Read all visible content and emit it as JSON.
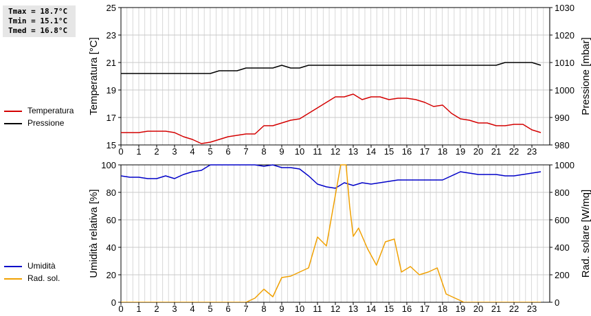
{
  "stats": {
    "tmax": "Tmax = 18.7°C",
    "tmin": "Tmin = 15.1°C",
    "tmed": "Tmed = 16.8°C"
  },
  "legend_top": [
    {
      "label": "Temperatura",
      "color": "#d40000"
    },
    {
      "label": "Pressione",
      "color": "#000000"
    }
  ],
  "legend_bottom": [
    {
      "label": "Umidità",
      "color": "#0000c8"
    },
    {
      "label": "Rad. sol.",
      "color": "#f0a000"
    }
  ],
  "chart_data": [
    {
      "type": "line",
      "ylabel": "Temperatura [°C]",
      "ylabel_right": "Pressione [mbar]",
      "xlim": [
        0,
        24
      ],
      "x_ticks": [
        0,
        1,
        2,
        3,
        4,
        5,
        6,
        7,
        8,
        9,
        10,
        11,
        12,
        13,
        14,
        15,
        16,
        17,
        18,
        19,
        20,
        21,
        22,
        23
      ],
      "ylim": [
        15,
        25
      ],
      "y_ticks": [
        15,
        17,
        19,
        21,
        23,
        25
      ],
      "ylim_right": [
        980,
        1030
      ],
      "y_ticks_right": [
        980,
        990,
        1000,
        1010,
        1020,
        1030
      ],
      "grid": true,
      "series": [
        {
          "name": "Temperatura",
          "axis": "left",
          "color": "#d40000",
          "x": [
            0,
            0.5,
            1,
            1.5,
            2,
            2.5,
            3,
            3.5,
            4,
            4.5,
            5,
            5.5,
            6,
            6.5,
            7,
            7.5,
            8,
            8.5,
            9,
            9.5,
            10,
            10.5,
            11,
            11.5,
            12,
            12.5,
            13,
            13.5,
            14,
            14.5,
            15,
            15.5,
            16,
            16.5,
            17,
            17.5,
            18,
            18.5,
            19,
            19.5,
            20,
            20.5,
            21,
            21.5,
            22,
            22.5,
            23,
            23.5
          ],
          "y": [
            15.9,
            15.9,
            15.9,
            16.0,
            16.0,
            16.0,
            15.9,
            15.6,
            15.4,
            15.1,
            15.2,
            15.4,
            15.6,
            15.7,
            15.8,
            15.8,
            16.4,
            16.4,
            16.6,
            16.8,
            16.9,
            17.3,
            17.7,
            18.1,
            18.5,
            18.5,
            18.7,
            18.3,
            18.5,
            18.5,
            18.3,
            18.4,
            18.4,
            18.3,
            18.1,
            17.8,
            17.9,
            17.3,
            16.9,
            16.8,
            16.6,
            16.6,
            16.4,
            16.4,
            16.5,
            16.5,
            16.1,
            15.9
          ]
        },
        {
          "name": "Pressione",
          "axis": "right",
          "color": "#000000",
          "x": [
            0,
            0.5,
            1,
            1.5,
            2,
            2.5,
            3,
            3.5,
            4,
            4.5,
            5,
            5.5,
            6,
            6.5,
            7,
            7.5,
            8,
            8.5,
            9,
            9.5,
            10,
            10.5,
            11,
            11.5,
            12,
            12.5,
            13,
            13.5,
            14,
            14.5,
            15,
            15.5,
            16,
            16.5,
            17,
            17.5,
            18,
            18.5,
            19,
            19.5,
            20,
            20.5,
            21,
            21.5,
            22,
            22.5,
            23,
            23.5
          ],
          "y": [
            1006,
            1006,
            1006,
            1006,
            1006,
            1006,
            1006,
            1006,
            1006,
            1006,
            1006,
            1007,
            1007,
            1007,
            1008,
            1008,
            1008,
            1008,
            1009,
            1008,
            1008,
            1009,
            1009,
            1009,
            1009,
            1009,
            1009,
            1009,
            1009,
            1009,
            1009,
            1009,
            1009,
            1009,
            1009,
            1009,
            1009,
            1009,
            1009,
            1009,
            1009,
            1009,
            1009,
            1010,
            1010,
            1010,
            1010,
            1009
          ]
        }
      ]
    },
    {
      "type": "line",
      "ylabel": "Umidità relativa [%]",
      "ylabel_right": "Rad. solare [W/mq]",
      "xlim": [
        0,
        24
      ],
      "x_ticks": [
        0,
        1,
        2,
        3,
        4,
        5,
        6,
        7,
        8,
        9,
        10,
        11,
        12,
        13,
        14,
        15,
        16,
        17,
        18,
        19,
        20,
        21,
        22,
        23
      ],
      "ylim": [
        0,
        100
      ],
      "y_ticks": [
        0,
        20,
        40,
        60,
        80,
        100
      ],
      "ylim_right": [
        0,
        1000
      ],
      "y_ticks_right": [
        0,
        200,
        400,
        600,
        800,
        1000
      ],
      "grid": true,
      "series": [
        {
          "name": "Umidità",
          "axis": "left",
          "color": "#0000c8",
          "x": [
            0,
            0.5,
            1,
            1.5,
            2,
            2.5,
            3,
            3.5,
            4,
            4.5,
            5,
            5.5,
            6,
            6.5,
            7,
            7.5,
            8,
            8.5,
            9,
            9.5,
            10,
            10.5,
            11,
            11.5,
            12,
            12.5,
            13,
            13.5,
            14,
            14.5,
            15,
            15.5,
            16,
            16.5,
            17,
            17.5,
            18,
            18.5,
            19,
            19.5,
            20,
            20.5,
            21,
            21.5,
            22,
            22.5,
            23,
            23.5
          ],
          "y": [
            92,
            91,
            91,
            90,
            90,
            92,
            90,
            93,
            95,
            96,
            100,
            100,
            100,
            100,
            100,
            100,
            99,
            100,
            98,
            98,
            97,
            92,
            86,
            84,
            83,
            87,
            85,
            87,
            86,
            87,
            88,
            89,
            89,
            89,
            89,
            89,
            89,
            92,
            95,
            94,
            93,
            93,
            93,
            92,
            92,
            93,
            94,
            95
          ]
        },
        {
          "name": "Rad. sol.",
          "axis": "right",
          "color": "#f0a000",
          "x": [
            0,
            0.5,
            1,
            1.5,
            2,
            2.5,
            3,
            3.5,
            4,
            4.5,
            5,
            5.5,
            6,
            6.5,
            7,
            7.5,
            8,
            8.5,
            9,
            9.5,
            10,
            10.5,
            11,
            11.5,
            12,
            12.3,
            12.6,
            12.8,
            13,
            13.3,
            13.8,
            14.3,
            14.8,
            15.3,
            15.7,
            16.2,
            16.7,
            17.2,
            17.7,
            18.2,
            18.7,
            19.2,
            19.7,
            20,
            20.5,
            21,
            21.5,
            22,
            22.5,
            23,
            23.5
          ],
          "y": [
            0,
            0,
            0,
            0,
            0,
            0,
            0,
            0,
            0,
            0,
            0,
            0,
            0,
            0,
            0,
            30,
            95,
            40,
            180,
            190,
            220,
            250,
            475,
            410,
            780,
            1000,
            1000,
            700,
            480,
            540,
            390,
            270,
            440,
            460,
            220,
            260,
            200,
            220,
            250,
            60,
            30,
            0,
            0,
            0,
            0,
            0,
            0,
            0,
            0,
            0,
            0
          ]
        }
      ]
    }
  ]
}
